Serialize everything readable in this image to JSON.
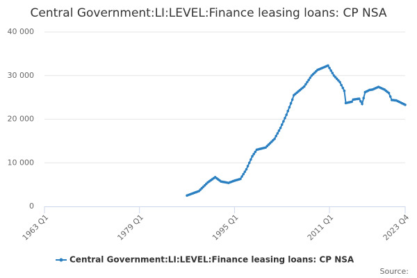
{
  "chart_data": {
    "type": "line",
    "title": "Central Government:LI:LEVEL:Finance leasing loans: CP NSA",
    "source": "Source:",
    "legend": "bottom",
    "grid": true,
    "x": [
      "1987 Q1",
      "1987 Q2",
      "1987 Q3",
      "1987 Q4",
      "1988 Q1",
      "1988 Q2",
      "1988 Q3",
      "1988 Q4",
      "1989 Q1",
      "1989 Q2",
      "1989 Q3",
      "1989 Q4",
      "1990 Q1",
      "1990 Q2",
      "1990 Q3",
      "1990 Q4",
      "1991 Q1",
      "1991 Q2",
      "1991 Q3",
      "1991 Q4",
      "1992 Q1",
      "1992 Q2",
      "1992 Q3",
      "1992 Q4",
      "1993 Q1",
      "1993 Q2",
      "1993 Q3",
      "1993 Q4",
      "1994 Q1",
      "1994 Q2",
      "1994 Q3",
      "1994 Q4",
      "1995 Q1",
      "1995 Q2",
      "1995 Q3",
      "1995 Q4",
      "1996 Q1",
      "1996 Q2",
      "1996 Q3",
      "1996 Q4",
      "1997 Q1",
      "1997 Q2",
      "1997 Q3",
      "1997 Q4",
      "1998 Q1",
      "1998 Q2",
      "1998 Q3",
      "1998 Q4",
      "1999 Q1",
      "1999 Q2",
      "1999 Q3",
      "1999 Q4",
      "2000 Q1",
      "2000 Q2",
      "2000 Q3",
      "2000 Q4",
      "2001 Q1",
      "2001 Q2",
      "2001 Q3",
      "2001 Q4",
      "2002 Q1",
      "2002 Q2",
      "2002 Q3",
      "2002 Q4",
      "2003 Q1",
      "2003 Q2",
      "2003 Q3",
      "2003 Q4",
      "2004 Q1",
      "2004 Q2",
      "2004 Q3",
      "2004 Q4",
      "2005 Q1",
      "2005 Q2",
      "2005 Q3",
      "2005 Q4",
      "2006 Q1",
      "2006 Q2",
      "2006 Q3",
      "2006 Q4",
      "2007 Q1",
      "2007 Q2",
      "2007 Q3",
      "2007 Q4",
      "2008 Q1",
      "2008 Q2",
      "2008 Q3",
      "2008 Q4",
      "2009 Q1",
      "2009 Q2",
      "2009 Q3",
      "2009 Q4",
      "2010 Q1",
      "2010 Q2",
      "2010 Q3",
      "2010 Q4",
      "2011 Q1",
      "2011 Q2",
      "2011 Q3",
      "2011 Q4",
      "2012 Q1",
      "2012 Q2",
      "2012 Q3",
      "2012 Q4",
      "2013 Q1",
      "2013 Q2",
      "2013 Q3",
      "2013 Q4",
      "2014 Q1",
      "2014 Q2",
      "2014 Q3",
      "2014 Q4",
      "2015 Q1",
      "2015 Q2",
      "2015 Q3",
      "2015 Q4",
      "2016 Q1",
      "2016 Q2",
      "2016 Q3",
      "2016 Q4",
      "2017 Q1",
      "2017 Q2",
      "2017 Q3",
      "2017 Q4",
      "2018 Q1",
      "2018 Q2",
      "2018 Q3",
      "2018 Q4",
      "2019 Q1",
      "2019 Q2",
      "2019 Q3",
      "2019 Q4",
      "2020 Q1",
      "2020 Q2",
      "2020 Q3",
      "2020 Q4",
      "2021 Q1",
      "2021 Q2",
      "2021 Q3",
      "2021 Q4",
      "2022 Q1",
      "2022 Q2",
      "2022 Q3",
      "2022 Q4",
      "2023 Q1",
      "2023 Q2",
      "2023 Q3",
      "2023 Q4"
    ],
    "series": [
      {
        "name": "Central Government:LI:LEVEL:Finance leasing loans: CP NSA",
        "color": "#2a7fc1",
        "values": [
          2500,
          2630,
          2750,
          2880,
          3000,
          3130,
          3250,
          3380,
          3500,
          3830,
          4170,
          4500,
          4830,
          5170,
          5500,
          5740,
          5980,
          6220,
          6460,
          6700,
          6450,
          6200,
          5950,
          5700,
          5640,
          5580,
          5520,
          5460,
          5400,
          5530,
          5650,
          5780,
          5900,
          6000,
          6100,
          6200,
          6300,
          6850,
          7400,
          7950,
          8500,
          9250,
          10000,
          10750,
          11500,
          12000,
          12500,
          13000,
          13080,
          13170,
          13250,
          13330,
          13420,
          13500,
          13830,
          14170,
          14500,
          14830,
          15170,
          15500,
          16130,
          16750,
          17380,
          18000,
          18750,
          19500,
          20250,
          21000,
          21880,
          22750,
          23630,
          24500,
          25500,
          25790,
          26070,
          26360,
          26640,
          26930,
          27210,
          27500,
          28000,
          28500,
          29000,
          29500,
          30000,
          30330,
          30650,
          30980,
          31300,
          31440,
          31590,
          31730,
          31870,
          32010,
          32160,
          32300,
          31730,
          31150,
          30580,
          30000,
          29630,
          29250,
          28880,
          28500,
          27830,
          27170,
          26500,
          23700,
          23780,
          23850,
          23930,
          24000,
          24500,
          24550,
          24600,
          24650,
          24700,
          24100,
          23500,
          24850,
          26200,
          26370,
          26530,
          26700,
          26750,
          26800,
          26950,
          27100,
          27250,
          27400,
          27250,
          27100,
          26950,
          26800,
          26530,
          26270,
          26000,
          25200,
          24400,
          24370,
          24330,
          24300,
          24130,
          23970,
          23800,
          23630,
          23470,
          23300
        ]
      }
    ],
    "xlim": [
      "1963 Q1",
      "2023 Q4"
    ],
    "xticks": [
      "1963 Q1",
      "1979 Q1",
      "1995 Q1",
      "2011 Q1",
      "2023 Q4"
    ],
    "ylim": [
      0,
      40000
    ],
    "yticks": [
      0,
      {
        "value": 10000,
        "label": "10 000"
      },
      {
        "value": 20000,
        "label": "20 000"
      },
      {
        "value": 30000,
        "label": "30 000"
      },
      {
        "value": 40000,
        "label": "40 000"
      }
    ]
  }
}
